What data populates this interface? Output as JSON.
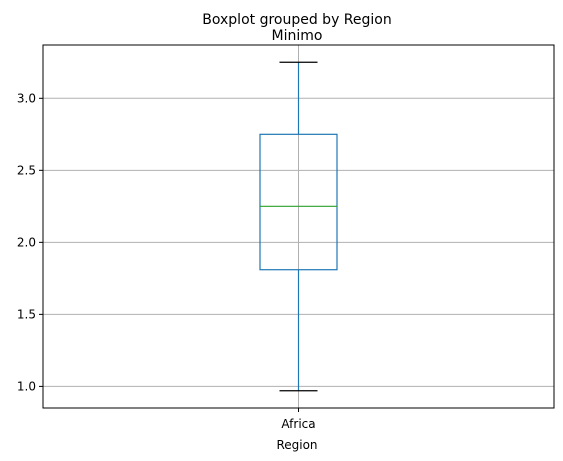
{
  "chart_data": {
    "type": "boxplot",
    "suptitle": "Boxplot grouped by Region",
    "title": "Minimo",
    "xlabel": "Region",
    "ylabel": "",
    "categories": [
      "Africa"
    ],
    "boxes": [
      {
        "category": "Africa",
        "whisker_low": 0.97,
        "q1": 1.81,
        "median": 2.25,
        "q3": 2.75,
        "whisker_high": 3.25
      }
    ],
    "ylim": [
      0.85,
      3.37
    ],
    "yticks": [
      1.0,
      1.5,
      2.0,
      2.5,
      3.0
    ],
    "ytick_labels": [
      "1.0",
      "1.5",
      "2.0",
      "2.5",
      "3.0"
    ],
    "grid": true,
    "colors": {
      "box": "#1f77b4",
      "median": "#2ca02c",
      "whisker_cap": "#000000",
      "grid": "#b0b0b0"
    }
  }
}
